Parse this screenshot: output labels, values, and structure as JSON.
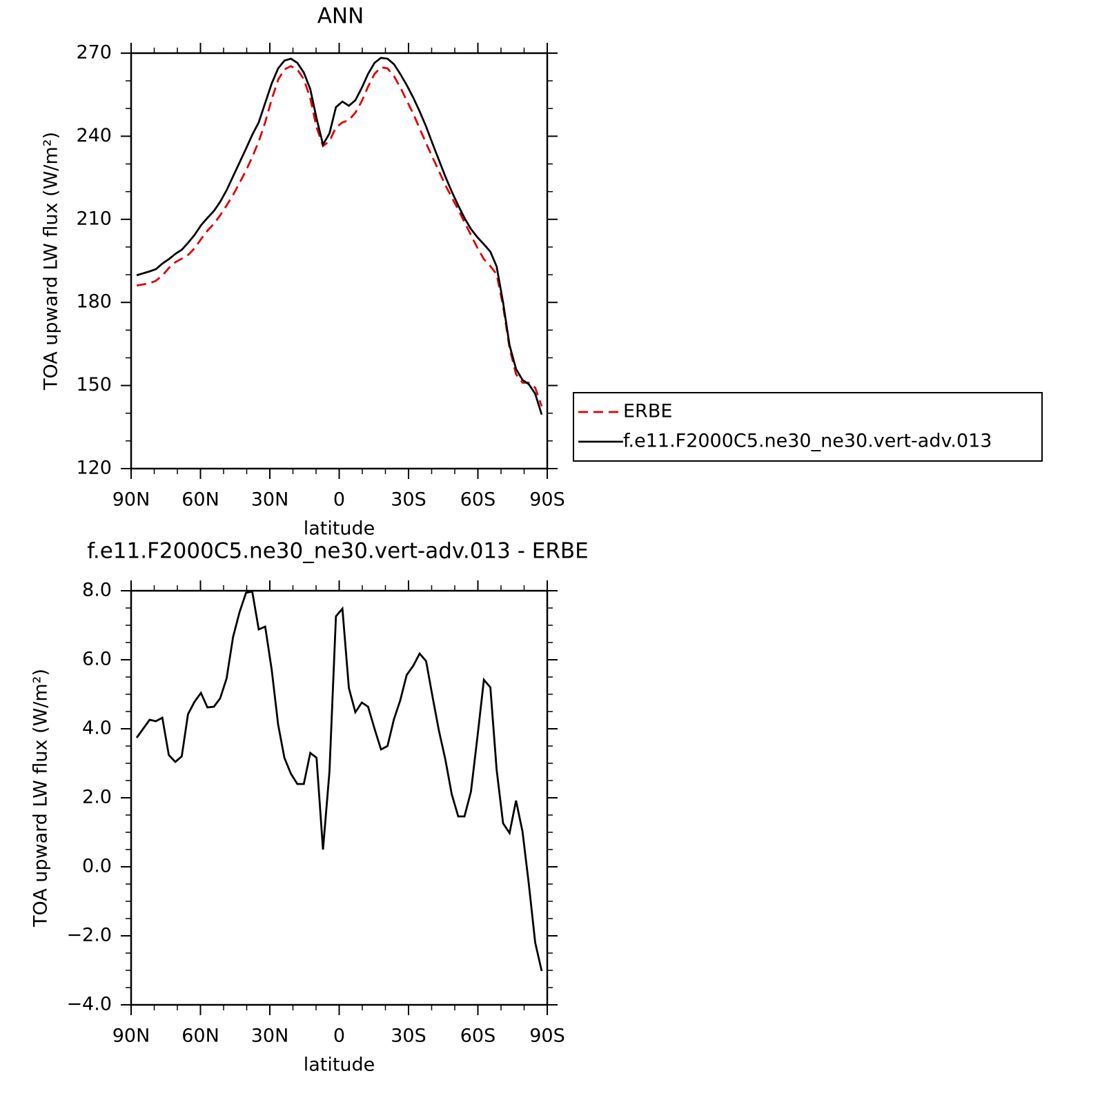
{
  "chart_data": [
    {
      "type": "line",
      "title": "ANN",
      "x_label": "latitude",
      "y_label": "TOA upward LW flux (W/m²)",
      "x": [
        87.6,
        84.8,
        82.0,
        79.3,
        76.5,
        73.7,
        70.9,
        68.1,
        65.4,
        62.6,
        59.8,
        57.0,
        54.2,
        51.5,
        48.7,
        45.9,
        43.1,
        40.3,
        37.6,
        34.8,
        32.0,
        29.2,
        26.4,
        23.7,
        20.9,
        18.1,
        15.3,
        12.5,
        9.8,
        7.0,
        4.2,
        1.4,
        -1.4,
        -4.2,
        -7.0,
        -9.8,
        -12.5,
        -15.3,
        -18.1,
        -20.9,
        -23.7,
        -26.4,
        -29.2,
        -32.0,
        -34.8,
        -37.6,
        -40.3,
        -43.1,
        -45.9,
        -48.7,
        -51.5,
        -54.2,
        -57.0,
        -59.8,
        -62.6,
        -65.4,
        -68.1,
        -70.9,
        -73.7,
        -76.5,
        -79.3,
        -82.0,
        -84.8,
        -87.6
      ],
      "series": [
        {
          "name": "ERBE",
          "color": "#e00000",
          "dash": "dashed",
          "values": [
            186.1,
            186.5,
            186.9,
            187.8,
            189.7,
            192.4,
            194.5,
            195.8,
            197.1,
            199.5,
            202.8,
            205.9,
            208.4,
            211.4,
            215.0,
            218.8,
            223.1,
            227.6,
            232.5,
            238.1,
            245.0,
            253.3,
            260.4,
            264.1,
            265.3,
            264.1,
            260.6,
            253.7,
            243.3,
            236.5,
            238.2,
            243.2,
            245.0,
            245.8,
            248.5,
            252.7,
            257.9,
            262.5,
            264.9,
            264.5,
            261.7,
            257.7,
            252.9,
            248.2,
            242.8,
            237.5,
            232.5,
            227.5,
            222.4,
            217.9,
            213.5,
            209.0,
            204.3,
            199.7,
            195.6,
            193.1,
            190.2,
            178.7,
            163.5,
            154.1,
            151.0,
            151.0,
            149.2,
            142.5
          ]
        },
        {
          "name": "f.e11.F2000C5.ne30_ne30.vert-adv.013",
          "color": "#000000",
          "dash": "solid",
          "values": [
            189.8,
            190.5,
            191.2,
            192.0,
            194.0,
            195.6,
            197.5,
            199.0,
            201.5,
            204.3,
            207.8,
            210.5,
            213.0,
            216.3,
            220.5,
            225.5,
            230.5,
            235.5,
            240.5,
            245.0,
            252.0,
            259.0,
            264.5,
            267.3,
            268.0,
            266.5,
            263.0,
            257.0,
            246.5,
            237.0,
            241.0,
            250.5,
            252.5,
            251.0,
            253.0,
            257.5,
            262.5,
            266.5,
            268.3,
            268.0,
            266.0,
            262.5,
            258.5,
            254.0,
            249.0,
            243.5,
            237.5,
            231.5,
            225.5,
            220.0,
            215.0,
            210.5,
            206.5,
            203.5,
            201.0,
            198.3,
            193.0,
            180.0,
            164.5,
            156.0,
            152.0,
            150.5,
            147.0,
            139.5
          ]
        }
      ],
      "xlim": [
        90,
        -90
      ],
      "xticks": [
        {
          "value": 90,
          "label": "90N"
        },
        {
          "value": 60,
          "label": "60N"
        },
        {
          "value": 30,
          "label": "30N"
        },
        0,
        {
          "value": -30,
          "label": "30S"
        },
        {
          "value": -60,
          "label": "60S"
        },
        {
          "value": -90,
          "label": "90S"
        }
      ],
      "ylim": [
        120,
        270
      ],
      "yticks": [
        120,
        150,
        180,
        210,
        240,
        270
      ],
      "legend": "right"
    },
    {
      "type": "line",
      "title": "f.e11.F2000C5.ne30_ne30.vert-adv.013 - ERBE",
      "x_label": "latitude",
      "y_label": "TOA upward LW flux (W/m²)",
      "x": [
        87.6,
        84.8,
        82.0,
        79.3,
        76.5,
        73.7,
        70.9,
        68.1,
        65.4,
        62.6,
        59.8,
        57.0,
        54.2,
        51.5,
        48.7,
        45.9,
        43.1,
        40.3,
        37.6,
        34.8,
        32.0,
        29.2,
        26.4,
        23.7,
        20.9,
        18.1,
        15.3,
        12.5,
        9.8,
        7.0,
        4.2,
        1.4,
        -1.4,
        -4.2,
        -7.0,
        -9.8,
        -12.5,
        -15.3,
        -18.1,
        -20.9,
        -23.7,
        -26.4,
        -29.2,
        -32.0,
        -34.8,
        -37.6,
        -40.3,
        -43.1,
        -45.9,
        -48.7,
        -51.5,
        -54.2,
        -57.0,
        -59.8,
        -62.6,
        -65.4,
        -68.1,
        -70.9,
        -73.7,
        -76.5,
        -79.3,
        -82.0,
        -84.8,
        -87.6
      ],
      "color": "#000000",
      "values": [
        3.74,
        4.0,
        4.26,
        4.22,
        4.32,
        3.24,
        3.04,
        3.2,
        4.42,
        4.78,
        5.04,
        4.62,
        4.64,
        4.88,
        5.46,
        6.66,
        7.38,
        7.94,
        7.98,
        6.88,
        6.96,
        5.72,
        4.12,
        3.16,
        2.7,
        2.4,
        2.4,
        3.3,
        3.16,
        0.5,
        2.76,
        7.26,
        7.48,
        5.18,
        4.48,
        4.76,
        4.64,
        4.0,
        3.4,
        3.5,
        4.28,
        4.82,
        5.56,
        5.82,
        6.18,
        5.96,
        4.96,
        3.96,
        3.12,
        2.1,
        1.46,
        1.46,
        2.18,
        3.76,
        5.42,
        5.2,
        2.82,
        1.26,
        0.98,
        1.92,
        1.02,
        -0.48,
        -2.2,
        -3.02
      ],
      "xlim": [
        90,
        -90
      ],
      "xticks": [
        {
          "value": 90,
          "label": "90N"
        },
        {
          "value": 60,
          "label": "60N"
        },
        {
          "value": 30,
          "label": "30N"
        },
        0,
        {
          "value": -30,
          "label": "30S"
        },
        {
          "value": -60,
          "label": "60S"
        },
        {
          "value": -90,
          "label": "90S"
        }
      ],
      "ylim": [
        -4,
        8
      ],
      "yticks": [
        {
          "value": -4,
          "label": "−4.0"
        },
        {
          "value": -2,
          "label": "−2.0"
        },
        {
          "value": 0,
          "label": "0.0"
        },
        {
          "value": 2,
          "label": "2.0"
        },
        {
          "value": 4,
          "label": "4.0"
        },
        {
          "value": 6,
          "label": "6.0"
        },
        {
          "value": 8,
          "label": "8.0"
        }
      ]
    }
  ]
}
